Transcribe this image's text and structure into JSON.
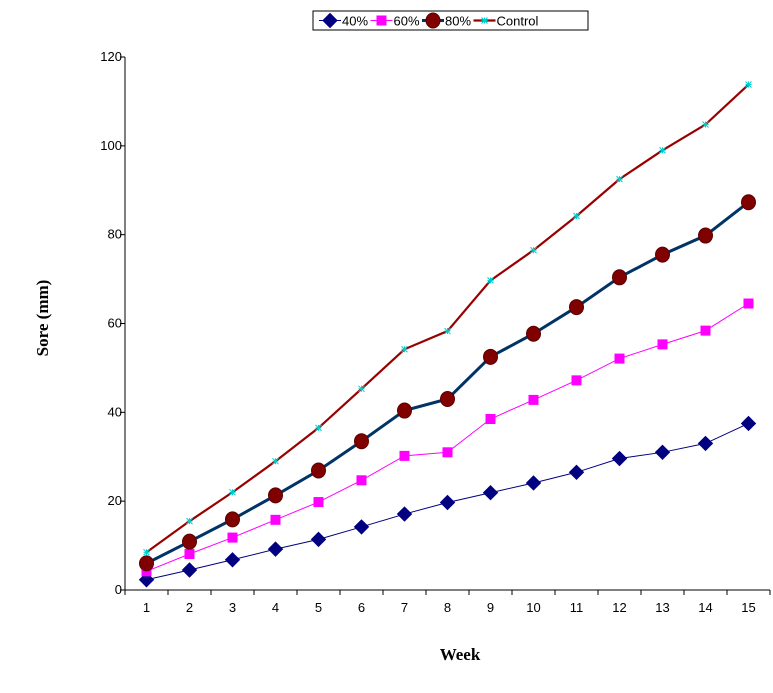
{
  "chart_data": {
    "type": "line",
    "title": "",
    "xlabel": "Week",
    "ylabel": "Sore (mm)",
    "ylim": [
      0,
      120
    ],
    "yticks": [
      0,
      20,
      40,
      60,
      80,
      100,
      120
    ],
    "categories": [
      "1",
      "2",
      "3",
      "4",
      "5",
      "6",
      "7",
      "8",
      "9",
      "10",
      "11",
      "12",
      "13",
      "14",
      "15"
    ],
    "grid": false,
    "legend_position": "top",
    "series": [
      {
        "name": "40%",
        "color": "#000080",
        "marker": "diamond",
        "values": [
          2.3,
          4.5,
          6.8,
          9.2,
          11.4,
          14.2,
          17.1,
          19.7,
          21.9,
          24.1,
          26.5,
          29.6,
          31.0,
          33.0,
          37.5
        ]
      },
      {
        "name": "60%",
        "color": "#ff00ff",
        "marker": "square",
        "values": [
          4.2,
          8.1,
          11.8,
          15.8,
          19.8,
          24.7,
          30.2,
          31.0,
          38.5,
          42.8,
          47.2,
          52.1,
          55.3,
          58.4,
          64.5
        ]
      },
      {
        "name": "80%",
        "color": "#800000",
        "line_color": "#003366",
        "marker": "circle",
        "values": [
          6.0,
          10.9,
          15.9,
          21.3,
          26.9,
          33.5,
          40.4,
          43.0,
          52.5,
          57.7,
          63.7,
          70.4,
          75.5,
          79.8,
          87.3
        ]
      },
      {
        "name": "Control",
        "color": "#990000",
        "marker": "star",
        "values": [
          8.5,
          15.5,
          22.0,
          29.0,
          36.5,
          45.3,
          54.2,
          58.3,
          69.7,
          76.5,
          84.2,
          92.5,
          99.0,
          104.8,
          113.8
        ]
      }
    ]
  }
}
